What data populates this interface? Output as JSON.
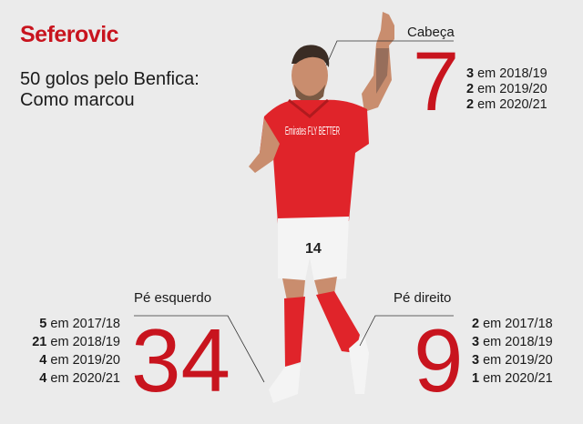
{
  "title": "Seferovic",
  "subtitle": [
    "50 golos pelo Benfica:",
    "Como marcou"
  ],
  "colors": {
    "accent": "#c8141e",
    "background": "#ebebeb"
  },
  "categories": [
    {
      "label": "Cabeça",
      "total": "7",
      "seasons": [
        {
          "goals": "3",
          "text": " em 2018/19"
        },
        {
          "goals": "2",
          "text": " em 2019/20"
        },
        {
          "goals": "2",
          "text": " em 2020/21"
        }
      ]
    },
    {
      "label": "Pé esquerdo",
      "total": "34",
      "seasons": [
        {
          "goals": "5",
          "text": " em 2017/18"
        },
        {
          "goals": "21",
          "text": " em 2018/19"
        },
        {
          "goals": "4",
          "text": " em 2019/20"
        },
        {
          "goals": "4",
          "text": " em 2020/21"
        }
      ]
    },
    {
      "label": "Pé direito",
      "total": "9",
      "seasons": [
        {
          "goals": "2",
          "text": " em 2017/18"
        },
        {
          "goals": "3",
          "text": " em 2018/19"
        },
        {
          "goals": "3",
          "text": " em 2019/20"
        },
        {
          "goals": "1",
          "text": " em 2020/21"
        }
      ]
    }
  ],
  "player": {
    "shirt_number": "14",
    "sponsor": "Emirates FLY BETTER"
  }
}
